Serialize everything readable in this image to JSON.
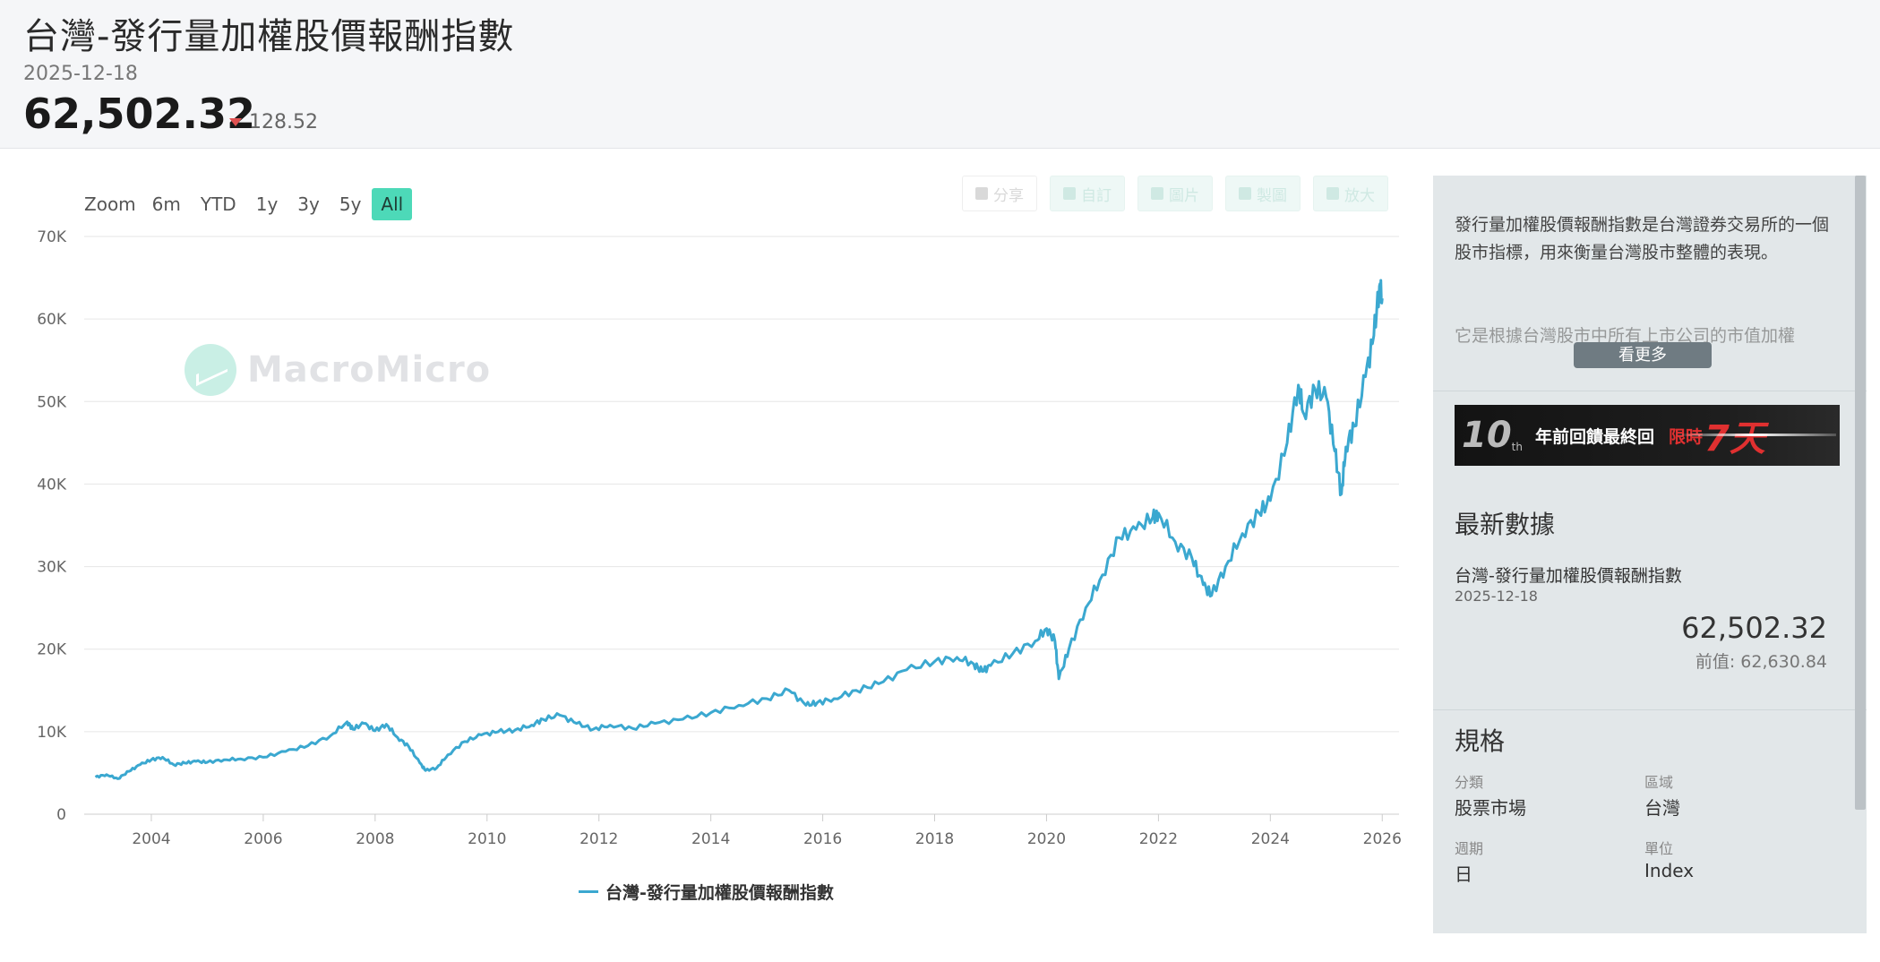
{
  "header": {
    "title": "台灣-發行量加權股價報酬指數",
    "date": "2025-12-18",
    "value": "62,502.32",
    "change": "128.52",
    "change_direction": "down",
    "change_color": "#e05252"
  },
  "toolbar": {
    "zoom_label": "Zoom",
    "zoom_options": [
      "6m",
      "YTD",
      "1y",
      "3y",
      "5y",
      "All"
    ],
    "zoom_active": "All",
    "accent": "#4dd9b8",
    "buttons": [
      {
        "icon": "share-icon",
        "label": "分享"
      },
      {
        "icon": "gear-icon",
        "label": "自訂"
      },
      {
        "icon": "download-icon",
        "label": "圖片"
      },
      {
        "icon": "pencil-icon",
        "label": "製圖"
      },
      {
        "icon": "expand-icon",
        "label": "放大"
      }
    ]
  },
  "watermark": "MacroMicro",
  "chart_data": {
    "type": "line",
    "ylim": [
      0,
      70000
    ],
    "yticks": [
      0,
      10000,
      20000,
      30000,
      40000,
      50000,
      60000,
      70000
    ],
    "ytick_labels": [
      "0",
      "10K",
      "20K",
      "30K",
      "40K",
      "50K",
      "60K",
      "70K"
    ],
    "xlim": [
      2002.8,
      2026.3
    ],
    "xticks": [
      2004,
      2006,
      2008,
      2010,
      2012,
      2014,
      2016,
      2018,
      2020,
      2022,
      2024,
      2026
    ],
    "xtick_labels": [
      "2004",
      "2006",
      "2008",
      "2010",
      "2012",
      "2014",
      "2016",
      "2018",
      "2020",
      "2022",
      "2024",
      "2026"
    ],
    "grid": true,
    "legend_position": "bottom-center",
    "series": [
      {
        "name": "台灣-發行量加權股價報酬指數",
        "color": "#3ba8d0",
        "x": [
          2003.0,
          2003.2,
          2003.4,
          2003.6,
          2003.8,
          2004.0,
          2004.2,
          2004.4,
          2004.6,
          2004.8,
          2005.0,
          2005.3,
          2005.6,
          2006.0,
          2006.4,
          2006.8,
          2007.2,
          2007.5,
          2007.6,
          2007.8,
          2008.0,
          2008.2,
          2008.4,
          2008.6,
          2008.8,
          2008.9,
          2009.1,
          2009.3,
          2009.6,
          2009.9,
          2010.2,
          2010.5,
          2010.8,
          2011.0,
          2011.3,
          2011.6,
          2011.9,
          2012.2,
          2012.6,
          2013.0,
          2013.5,
          2014.0,
          2014.5,
          2015.0,
          2015.4,
          2015.7,
          2015.9,
          2016.2,
          2016.6,
          2017.0,
          2017.5,
          2018.0,
          2018.4,
          2018.7,
          2018.85,
          2019.0,
          2019.4,
          2019.8,
          2020.0,
          2020.15,
          2020.22,
          2020.4,
          2020.7,
          2021.0,
          2021.3,
          2021.6,
          2021.9,
          2022.0,
          2022.3,
          2022.6,
          2022.8,
          2022.95,
          2023.2,
          2023.5,
          2023.8,
          2024.0,
          2024.3,
          2024.5,
          2024.6,
          2024.8,
          2025.0,
          2025.15,
          2025.27,
          2025.35,
          2025.5,
          2025.7,
          2025.85,
          2025.95,
          2026.0
        ],
        "y": [
          4500,
          4800,
          4300,
          5200,
          6000,
          6600,
          6900,
          6000,
          6200,
          6400,
          6300,
          6600,
          6700,
          6900,
          7600,
          8300,
          9500,
          11200,
          10300,
          11000,
          10100,
          10900,
          9300,
          8200,
          6200,
          5300,
          5600,
          7200,
          8800,
          9600,
          10000,
          10200,
          10800,
          11500,
          12000,
          11000,
          10300,
          10800,
          10400,
          11000,
          11500,
          12300,
          13200,
          14000,
          15000,
          13200,
          13500,
          14000,
          15000,
          15800,
          17500,
          18500,
          19000,
          18200,
          17300,
          18000,
          19500,
          21000,
          22500,
          21000,
          16400,
          20000,
          25000,
          29000,
          33500,
          34500,
          36000,
          36500,
          33000,
          31000,
          27800,
          26500,
          30000,
          34000,
          36500,
          38000,
          45000,
          52000,
          48500,
          51500,
          50500,
          44000,
          38800,
          44500,
          47000,
          53000,
          58000,
          64000,
          62500
        ]
      }
    ]
  },
  "sidebar": {
    "description": "發行量加權股價報酬指數是台灣證券交易所的一個股市指標，用來衡量台灣股市整體的表現。",
    "description_more": "它是根據台灣股市中所有上市公司的市值加權",
    "more_button": "看更多",
    "banner": {
      "number": "10",
      "suffix": "th",
      "text": "年前回饋最終回",
      "hot": "限時",
      "seven": "7天"
    },
    "latest_title": "最新數據",
    "latest_name": "台灣-發行量加權股價報酬指數",
    "latest_date": "2025-12-18",
    "latest_value": "62,502.32",
    "prev_label": "前值:",
    "prev_value": "62,630.84",
    "spec_title": "規格",
    "spec": [
      {
        "label": "分類",
        "value": "股票市場"
      },
      {
        "label": "區域",
        "value": "台灣"
      },
      {
        "label": "週期",
        "value": "日"
      },
      {
        "label": "單位",
        "value": "Index"
      }
    ]
  }
}
